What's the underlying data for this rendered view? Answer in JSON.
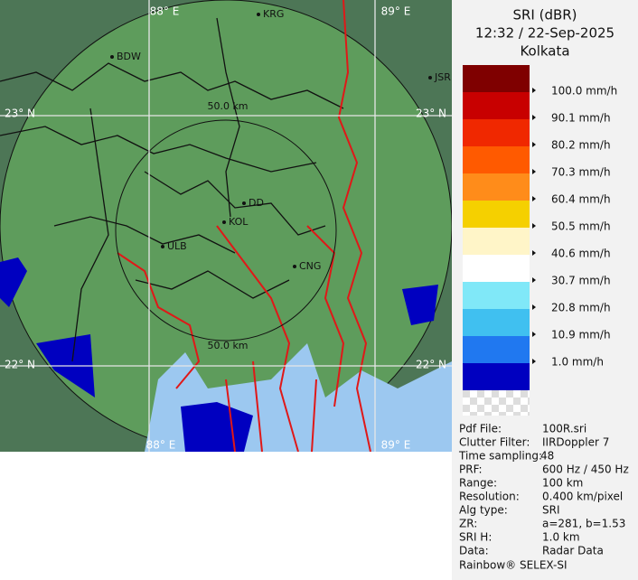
{
  "header": {
    "product": "SRI (dBR)",
    "time": "12:32 / 22-Sep-2025",
    "site": "Kolkata"
  },
  "legend": {
    "colors": [
      "#7f0000",
      "#c80000",
      "#f02800",
      "#ff5a00",
      "#ff8c1a",
      "#f5d000",
      "#fff5c8",
      "#ffffff",
      "#80e8f8",
      "#40c0f0",
      "#2078f0",
      "#0000c0"
    ],
    "labels": [
      "100.0 mm/h",
      "90.1 mm/h",
      "80.2 mm/h",
      "70.3 mm/h",
      "60.4 mm/h",
      "50.5 mm/h",
      "40.6 mm/h",
      "30.7 mm/h",
      "20.8 mm/h",
      "10.9 mm/h",
      "1.0 mm/h"
    ]
  },
  "map": {
    "grid_labels": [
      "88° E",
      "89° E",
      "23° N",
      "23° N",
      "22° N",
      "22° N",
      "88° E",
      "89° E"
    ],
    "range_labels": [
      "50.0 km",
      "50.0 km"
    ],
    "cities": [
      "KRG",
      "BDW",
      "JSR",
      "DD",
      "KOL",
      "ULB",
      "CNG"
    ]
  },
  "info": {
    "rows": [
      [
        "Pdf File:",
        "100R.sri"
      ],
      [
        "Clutter Filter:",
        "IIRDoppler 7"
      ],
      [
        "Time sampling:",
        "48"
      ],
      [
        "PRF:",
        "600 Hz / 450 Hz"
      ],
      [
        "Range:",
        "100 km"
      ],
      [
        "Resolution:",
        "0.400 km/pixel"
      ],
      [
        "Alg type:",
        "SRI"
      ],
      [
        "ZR:",
        "a=281, b=1.53"
      ],
      [
        "SRI H:",
        "1.0 km"
      ],
      [
        "Data:",
        "Radar Data"
      ]
    ]
  },
  "footer": "Rainbow® SELEX-SI"
}
